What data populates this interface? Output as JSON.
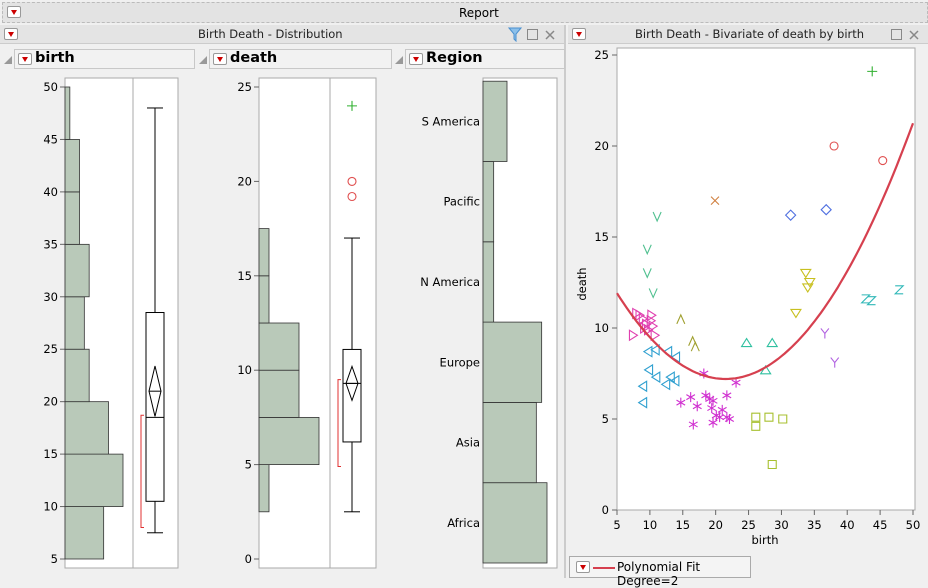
{
  "report": {
    "title": "Report"
  },
  "distribution": {
    "title": "Birth Death - Distribution",
    "columns": [
      "birth",
      "death",
      "Region"
    ]
  },
  "bivariate": {
    "title": "Birth Death - Bivariate of death by birth",
    "legend": "Polynomial Fit Degree=2"
  },
  "colors": {
    "bar": "#b9c9b9",
    "fit": "#d6404f",
    "accent": "#c00000"
  },
  "chart_data": [
    {
      "type": "bar",
      "name": "birth histogram",
      "orientation": "horizontal",
      "bin_edges": [
        5,
        10,
        15,
        20,
        25,
        30,
        35,
        40,
        45,
        50
      ],
      "counts": [
        8,
        12,
        9,
        5,
        4,
        5,
        3,
        3,
        1
      ],
      "axis": {
        "range": [
          5,
          50
        ],
        "ticks": [
          5,
          10,
          15,
          20,
          25,
          30,
          35,
          40,
          45,
          50
        ]
      },
      "boxplot": {
        "min": 7.5,
        "q1": 10.5,
        "median": 18.5,
        "q3": 28.5,
        "max": 48,
        "mean": 21,
        "mean_ci": [
          18.6,
          23.4
        ],
        "shortest_half": [
          8,
          18.7
        ],
        "outliers": []
      }
    },
    {
      "type": "bar",
      "name": "death histogram",
      "orientation": "horizontal",
      "bin_edges": [
        0,
        2.5,
        5,
        7.5,
        10,
        12.5,
        15,
        17.5
      ],
      "counts": [
        0,
        1,
        6,
        4,
        4,
        1,
        1
      ],
      "axis": {
        "range": [
          0,
          25
        ],
        "ticks": [
          0,
          5,
          10,
          15,
          20,
          25
        ]
      },
      "boxplot": {
        "min": 2.5,
        "q1": 6.2,
        "median": 9.3,
        "q3": 11.1,
        "max": 17,
        "mean": 9.3,
        "mean_ci": [
          8.4,
          10.2
        ],
        "shortest_half": [
          4.9,
          9.5
        ],
        "outliers": [
          {
            "v": 19.2,
            "m": "o",
            "c": "#e05050"
          },
          {
            "v": 20,
            "m": "o",
            "c": "#e05050"
          },
          {
            "v": 24,
            "m": "+",
            "c": "#30b030"
          }
        ]
      }
    },
    {
      "type": "bar",
      "name": "Region frequencies",
      "orientation": "horizontal",
      "categories": [
        "Africa",
        "Asia",
        "Europe",
        "N America",
        "Pacific",
        "S America"
      ],
      "counts": [
        12,
        10,
        11,
        2,
        2,
        4.5
      ]
    },
    {
      "type": "scatter",
      "title": "Bivariate of death by birth",
      "xlabel": "birth",
      "ylabel": "death",
      "xlim": [
        5,
        50
      ],
      "ylim": [
        0,
        25
      ],
      "xticks": [
        5,
        10,
        15,
        20,
        25,
        30,
        35,
        40,
        45,
        50
      ],
      "yticks": [
        0,
        5,
        10,
        15,
        20,
        25
      ],
      "fit": {
        "type": "polynomial",
        "degree": 2,
        "vertex": [
          21.5,
          7.2
        ],
        "a": 0.0173,
        "label": "Polynomial Fit Degree=2"
      },
      "points": [
        {
          "x": 43.8,
          "y": 24.1,
          "m": "+",
          "c": "#30b030"
        },
        {
          "x": 38,
          "y": 20,
          "m": "○",
          "c": "#e05050"
        },
        {
          "x": 45.4,
          "y": 19.2,
          "m": "○",
          "c": "#e05050"
        },
        {
          "x": 19.9,
          "y": 17,
          "m": "×",
          "c": "#d08040"
        },
        {
          "x": 31.4,
          "y": 16.2,
          "m": "◇",
          "c": "#5070e0"
        },
        {
          "x": 36.8,
          "y": 16.5,
          "m": "◇",
          "c": "#5070e0"
        },
        {
          "x": 11.1,
          "y": 16.1,
          "m": "V",
          "c": "#50c090"
        },
        {
          "x": 9.6,
          "y": 14.3,
          "m": "V",
          "c": "#50c090"
        },
        {
          "x": 9.6,
          "y": 13,
          "m": "V",
          "c": "#50c090"
        },
        {
          "x": 10.5,
          "y": 11.9,
          "m": "V",
          "c": "#50c090"
        },
        {
          "x": 33.7,
          "y": 13,
          "m": "▽",
          "c": "#c8c020"
        },
        {
          "x": 34.3,
          "y": 12.5,
          "m": "▽",
          "c": "#c8c020"
        },
        {
          "x": 34,
          "y": 12.2,
          "m": "▽",
          "c": "#c8c020"
        },
        {
          "x": 32.2,
          "y": 10.8,
          "m": "▽",
          "c": "#c8c020"
        },
        {
          "x": 42.8,
          "y": 11.6,
          "m": "Z",
          "c": "#30b8b8"
        },
        {
          "x": 43.7,
          "y": 11.5,
          "m": "Z",
          "c": "#30b8b8"
        },
        {
          "x": 47.9,
          "y": 12.1,
          "m": "Z",
          "c": "#30b8b8"
        },
        {
          "x": 36.6,
          "y": 9.7,
          "m": "Y",
          "c": "#b060e0"
        },
        {
          "x": 38.1,
          "y": 8.1,
          "m": "Y",
          "c": "#b060e0"
        },
        {
          "x": 14.7,
          "y": 10.5,
          "m": "Λ",
          "c": "#a0a030"
        },
        {
          "x": 16.5,
          "y": 9.3,
          "m": "Λ",
          "c": "#a0a030"
        },
        {
          "x": 16.9,
          "y": 9.0,
          "m": "Λ",
          "c": "#a0a030"
        },
        {
          "x": 24.7,
          "y": 9.2,
          "m": "△",
          "c": "#30c0a0"
        },
        {
          "x": 28.6,
          "y": 9.2,
          "m": "△",
          "c": "#30c0a0"
        },
        {
          "x": 27.6,
          "y": 7.7,
          "m": "△",
          "c": "#30c0a0"
        },
        {
          "x": 7.5,
          "y": 9.6,
          "m": "▷",
          "c": "#e040b0"
        },
        {
          "x": 8,
          "y": 10.8,
          "m": "▷",
          "c": "#e040b0"
        },
        {
          "x": 8.5,
          "y": 10.7,
          "m": "▷",
          "c": "#e040b0"
        },
        {
          "x": 9,
          "y": 10.5,
          "m": "▷",
          "c": "#e040b0"
        },
        {
          "x": 9.5,
          "y": 10.2,
          "m": "▷",
          "c": "#e040b0"
        },
        {
          "x": 9.8,
          "y": 9.9,
          "m": "▷",
          "c": "#e040b0"
        },
        {
          "x": 10.2,
          "y": 10.4,
          "m": "▷",
          "c": "#e040b0"
        },
        {
          "x": 10.5,
          "y": 10.1,
          "m": "▷",
          "c": "#e040b0"
        },
        {
          "x": 9.2,
          "y": 10,
          "m": "▷",
          "c": "#e040b0"
        },
        {
          "x": 10.8,
          "y": 9.6,
          "m": "▷",
          "c": "#e040b0"
        },
        {
          "x": 10.3,
          "y": 10.7,
          "m": "▷",
          "c": "#e040b0"
        },
        {
          "x": 9.7,
          "y": 8.7,
          "m": "◁",
          "c": "#30a0d0"
        },
        {
          "x": 10.8,
          "y": 8.8,
          "m": "◁",
          "c": "#30a0d0"
        },
        {
          "x": 12.7,
          "y": 8.7,
          "m": "◁",
          "c": "#30a0d0"
        },
        {
          "x": 13.9,
          "y": 8.4,
          "m": "◁",
          "c": "#30a0d0"
        },
        {
          "x": 9.8,
          "y": 7.7,
          "m": "◁",
          "c": "#30a0d0"
        },
        {
          "x": 10.9,
          "y": 7.3,
          "m": "◁",
          "c": "#30a0d0"
        },
        {
          "x": 13.1,
          "y": 7.3,
          "m": "◁",
          "c": "#30a0d0"
        },
        {
          "x": 13.8,
          "y": 7.1,
          "m": "◁",
          "c": "#30a0d0"
        },
        {
          "x": 8.9,
          "y": 6.8,
          "m": "◁",
          "c": "#30a0d0"
        },
        {
          "x": 12.4,
          "y": 6.9,
          "m": "◁",
          "c": "#30a0d0"
        },
        {
          "x": 8.9,
          "y": 5.9,
          "m": "◁",
          "c": "#30a0d0"
        },
        {
          "x": 18.2,
          "y": 7.5,
          "m": "*",
          "c": "#d030d0"
        },
        {
          "x": 23.1,
          "y": 7,
          "m": "*",
          "c": "#d030d0"
        },
        {
          "x": 14.7,
          "y": 5.9,
          "m": "*",
          "c": "#d030d0"
        },
        {
          "x": 16.2,
          "y": 6.2,
          "m": "*",
          "c": "#d030d0"
        },
        {
          "x": 17.2,
          "y": 5.7,
          "m": "*",
          "c": "#d030d0"
        },
        {
          "x": 16.6,
          "y": 4.7,
          "m": "*",
          "c": "#d030d0"
        },
        {
          "x": 18.5,
          "y": 6.3,
          "m": "*",
          "c": "#d030d0"
        },
        {
          "x": 19.1,
          "y": 6.1,
          "m": "*",
          "c": "#d030d0"
        },
        {
          "x": 19.6,
          "y": 6,
          "m": "*",
          "c": "#d030d0"
        },
        {
          "x": 19.4,
          "y": 5.6,
          "m": "*",
          "c": "#d030d0"
        },
        {
          "x": 21.7,
          "y": 6.3,
          "m": "*",
          "c": "#d030d0"
        },
        {
          "x": 20.1,
          "y": 5.2,
          "m": "*",
          "c": "#d030d0"
        },
        {
          "x": 21,
          "y": 5.5,
          "m": "*",
          "c": "#d030d0"
        },
        {
          "x": 19.6,
          "y": 4.8,
          "m": "*",
          "c": "#d030d0"
        },
        {
          "x": 20.6,
          "y": 5.1,
          "m": "*",
          "c": "#d030d0"
        },
        {
          "x": 21.7,
          "y": 5.1,
          "m": "*",
          "c": "#d030d0"
        },
        {
          "x": 22.1,
          "y": 5,
          "m": "*",
          "c": "#d030d0"
        },
        {
          "x": 26.1,
          "y": 5.1,
          "m": "□",
          "c": "#a8c030"
        },
        {
          "x": 26.1,
          "y": 4.6,
          "m": "□",
          "c": "#a8c030"
        },
        {
          "x": 28.1,
          "y": 5.1,
          "m": "□",
          "c": "#a8c030"
        },
        {
          "x": 30.2,
          "y": 5,
          "m": "□",
          "c": "#a8c030"
        },
        {
          "x": 28.6,
          "y": 2.5,
          "m": "□",
          "c": "#a8c030"
        }
      ]
    }
  ]
}
